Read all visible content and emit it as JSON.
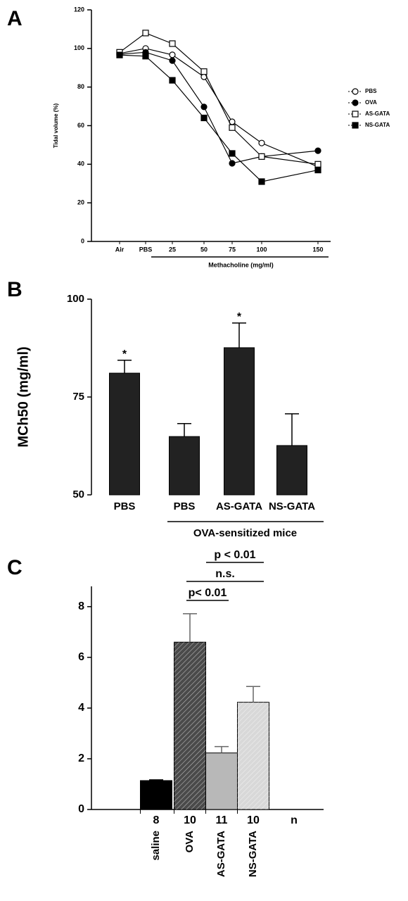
{
  "chart_data": [
    {
      "panel": "A",
      "type": "line",
      "y_label": "Tidal volume (%)",
      "x_label": "Methacholine (mg/ml)",
      "categories": [
        "Air",
        "PBS",
        "25",
        "50",
        "75",
        "100",
        "150"
      ],
      "ylim": [
        0,
        120
      ],
      "yticks": [
        0,
        20,
        40,
        60,
        80,
        100,
        120
      ],
      "series": [
        {
          "name": "PBS",
          "color": "#000000",
          "marker": "circle-open",
          "values": [
            97.4,
            100,
            96.7,
            85.3,
            62,
            51,
            38.7
          ]
        },
        {
          "name": "OVA",
          "color": "#000000",
          "marker": "circle-filled",
          "values": [
            97,
            98,
            93.7,
            69.7,
            40.5,
            44,
            47
          ]
        },
        {
          "name": "AS-GATA",
          "color": "#000000",
          "marker": "square-open",
          "values": [
            98,
            108,
            102.5,
            88,
            59,
            44,
            40
          ]
        },
        {
          "name": "NS-GATA",
          "color": "#000000",
          "marker": "square-filled",
          "values": [
            96.6,
            96,
            83.5,
            64,
            45.6,
            31,
            37
          ]
        }
      ]
    },
    {
      "panel": "B",
      "type": "bar",
      "y_label": "MCh50 (mg/ml)",
      "categories": [
        "PBS",
        "PBS",
        "AS-GATA",
        "NS-GATA"
      ],
      "values": [
        81.1,
        64.9,
        87.6,
        62.6
      ],
      "errors": [
        3.3,
        3.3,
        6.3,
        8.1
      ],
      "color": "#222222",
      "ylim": [
        50,
        100
      ],
      "yticks": [
        50,
        75,
        100
      ],
      "annotations": [
        "*",
        null,
        "*",
        null
      ],
      "group_label": "OVA-sensitized mice"
    },
    {
      "panel": "C",
      "type": "bar",
      "categories": [
        "saline",
        "OVA",
        "AS-GATA",
        "NS-GATA"
      ],
      "values": [
        1.14,
        6.6,
        2.23,
        4.23
      ],
      "errors": [
        0.03,
        1.12,
        0.25,
        0.62
      ],
      "colors": [
        "#000000",
        "#4a4a4a",
        "#b8b8b8",
        "#d8d8d8"
      ],
      "hatched": [
        false,
        true,
        false,
        true
      ],
      "ylim": [
        0,
        8.8
      ],
      "yticks": [
        0,
        2,
        4,
        6,
        8
      ],
      "n": [
        8,
        10,
        11,
        10
      ],
      "n_label": "n",
      "comparisons": [
        "p< 0.01",
        "n.s.",
        "p < 0.01"
      ]
    }
  ]
}
